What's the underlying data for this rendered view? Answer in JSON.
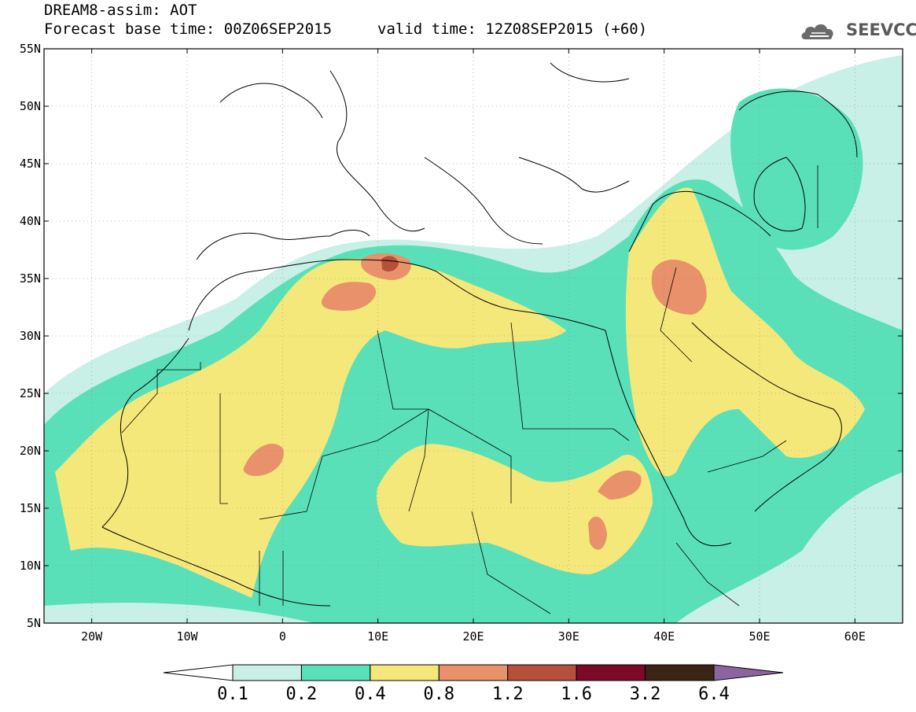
{
  "title": {
    "line1": "DREAM8-assim: AOT",
    "line2_left": "Forecast base time: 00Z06SEP2015",
    "line2_right": "valid time: 12Z08SEP2015 (+60)"
  },
  "logo": {
    "text": "SEEVCCC"
  },
  "axes": {
    "lat_labels": [
      "55N",
      "50N",
      "45N",
      "40N",
      "35N",
      "30N",
      "25N",
      "20N",
      "15N",
      "10N",
      "5N"
    ],
    "lon_labels": [
      "20W",
      "10W",
      "0",
      "10E",
      "20E",
      "30E",
      "40E",
      "50E",
      "60E"
    ]
  },
  "colorbar": {
    "labels": [
      "0.1",
      "0.2",
      "0.4",
      "0.8",
      "1.2",
      "1.6",
      "3.2",
      "6.4"
    ],
    "colors": [
      "#ffffff",
      "#c8f0e6",
      "#5ae0b8",
      "#f5e87a",
      "#e8916a",
      "#b4503c",
      "#7a0a28",
      "#3c2414",
      "#8c64a0"
    ]
  }
}
